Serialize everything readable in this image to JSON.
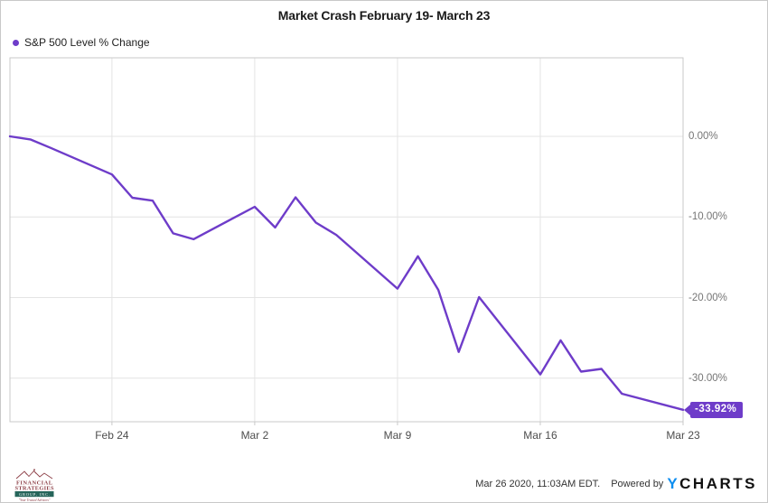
{
  "header": {
    "title": "Market Crash February 19- March 23"
  },
  "legend": {
    "label": "S&P 500 Level % Change"
  },
  "colors": {
    "accent": "#6e3cc9",
    "grid": "#e4e4e4",
    "plot_border": "#c9c9c9",
    "brand_blue": "#0d8ef0",
    "logo_maroon": "#8d3f47",
    "logo_teal": "#26655a"
  },
  "chart_data": {
    "type": "line",
    "title": "Market Crash February 19- March 23",
    "series_name": "S&P 500 Level % Change",
    "x_unit": "calendar dates (weekends skipped in data)",
    "points": [
      [
        "Feb 19",
        0.0
      ],
      [
        "Feb 20",
        -0.38
      ],
      [
        "Feb 21",
        -1.43
      ],
      [
        "Feb 24",
        -4.73
      ],
      [
        "Feb 25",
        -7.62
      ],
      [
        "Feb 26",
        -7.97
      ],
      [
        "Feb 27",
        -12.03
      ],
      [
        "Feb 28",
        -12.76
      ],
      [
        "Mar 2",
        -8.74
      ],
      [
        "Mar 3",
        -11.3
      ],
      [
        "Mar 4",
        -7.56
      ],
      [
        "Mar 5",
        -10.7
      ],
      [
        "Mar 6",
        -12.22
      ],
      [
        "Mar 9",
        -18.89
      ],
      [
        "Mar 10",
        -14.88
      ],
      [
        "Mar 11",
        -19.04
      ],
      [
        "Mar 12",
        -26.74
      ],
      [
        "Mar 13",
        -19.94
      ],
      [
        "Mar 16",
        -29.53
      ],
      [
        "Mar 17",
        -25.31
      ],
      [
        "Mar 18",
        -29.18
      ],
      [
        "Mar 19",
        -28.85
      ],
      [
        "Mar 20",
        -31.93
      ],
      [
        "Mar 23",
        -33.92
      ]
    ],
    "x_ticks": [
      "Feb 24",
      "Mar 2",
      "Mar 9",
      "Mar 16",
      "Mar 23"
    ],
    "y_ticks": [
      {
        "value": 0,
        "label": "0.00%"
      },
      {
        "value": -10,
        "label": "-10.00%"
      },
      {
        "value": -20,
        "label": "-20.00%"
      },
      {
        "value": -30,
        "label": "-30.00%"
      }
    ],
    "ylim": [
      -35.4,
      9.75
    ],
    "grid": true,
    "legend_position": "top-left",
    "end_label": "-33.92%"
  },
  "footer": {
    "logo": {
      "line1": "FINANCIAL",
      "line2": "STRATEGIES",
      "line3": "GROUP, INC.",
      "tagline": "\"Your Trusted Advisors\""
    },
    "timestamp": "Mar 26 2020, 11:03AM EDT.",
    "powered_by": "Powered by",
    "brand": {
      "y": "Y",
      "rest": "CHARTS"
    }
  }
}
